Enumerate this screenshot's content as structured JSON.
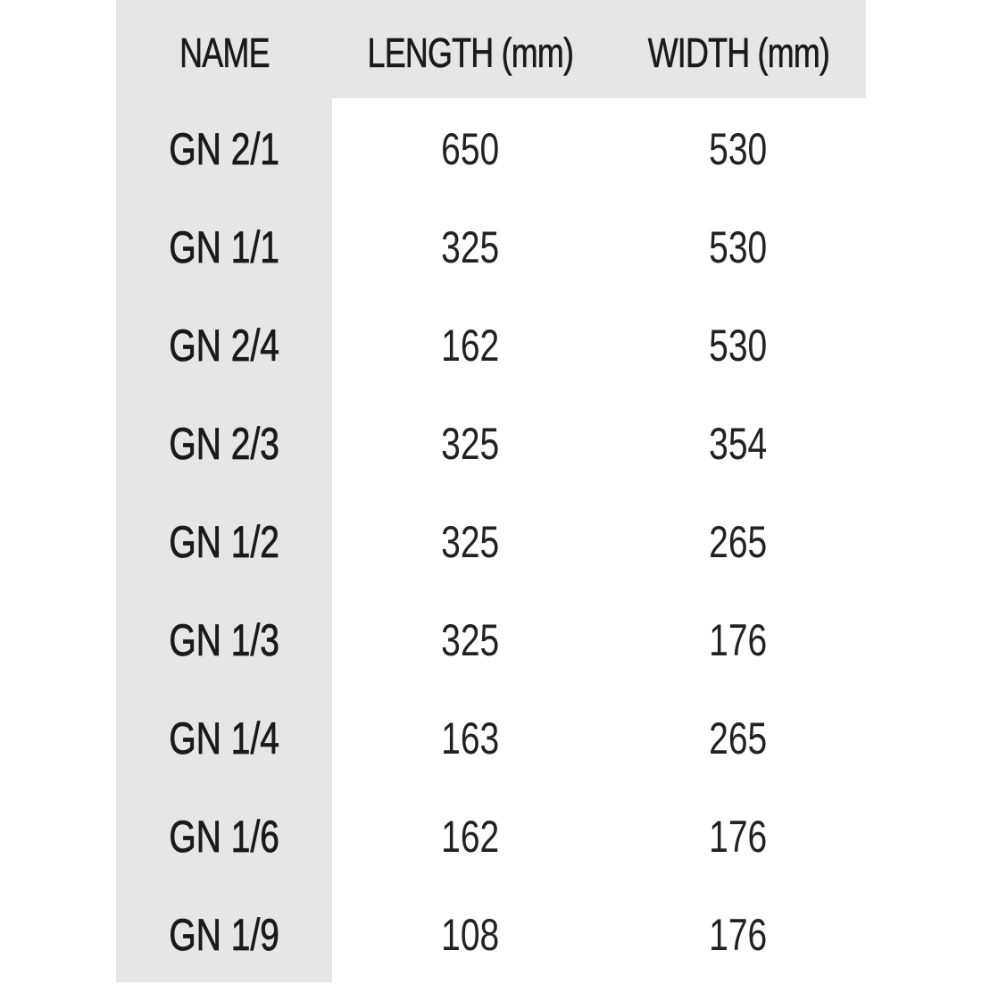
{
  "headers": [
    "NAME",
    "LENGTH (mm)",
    "WIDTH (mm)"
  ],
  "rows": [
    [
      "GN 2/1",
      "650",
      "530"
    ],
    [
      "GN 1/1",
      "325",
      "530"
    ],
    [
      "GN 2/4",
      "162",
      "530"
    ],
    [
      "GN 2/3",
      "325",
      "354"
    ],
    [
      "GN 1/2",
      "325",
      "265"
    ],
    [
      "GN 1/3",
      "325",
      "176"
    ],
    [
      "GN 1/4",
      "163",
      "265"
    ],
    [
      "GN 1/6",
      "162",
      "176"
    ],
    [
      "GN 1/9",
      "108",
      "176"
    ]
  ],
  "colors": {
    "shade": "#e6e6e6",
    "text": "#1a1a1a"
  }
}
